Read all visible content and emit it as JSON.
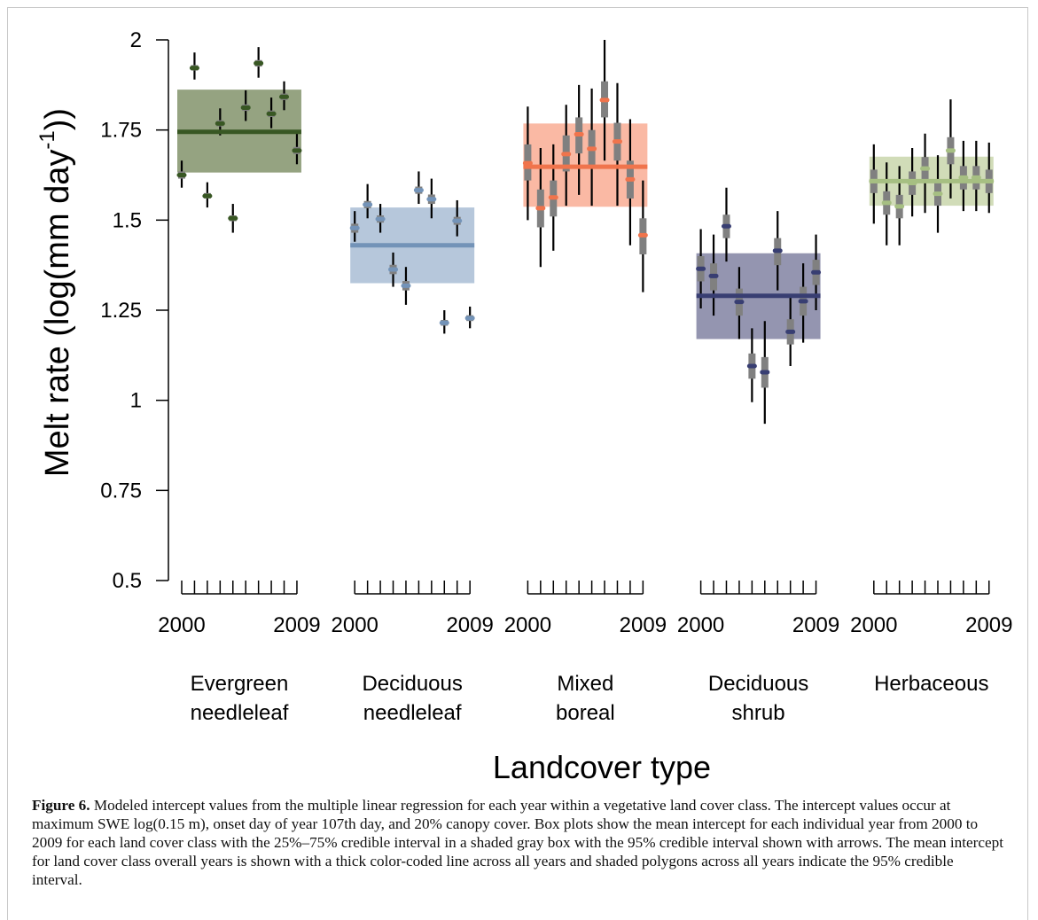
{
  "figure": {
    "label": "Figure 6.",
    "caption": "Modeled intercept values from the multiple linear regression for each year within a vegetative land cover class. The intercept values occur at maximum SWE log(0.15 m), onset day of year 107th day, and 20% canopy cover. Box plots show the mean intercept for each individual year from 2000 to 2009 for each land cover class with the 25%–75% credible interval in a shaded gray box with the 95% credible interval shown with arrows. The mean intercept for land cover class overall years is shown with a thick color-coded line across all years and shaded polygons across all years indicate the 95% credible interval."
  },
  "chart_data": {
    "type": "box",
    "xlabel": "Landcover type",
    "ylabel_main": "Melt rate (log(mm day",
    "ylabel_sup": "-1",
    "ylabel_end": "))",
    "ylim": [
      0.5,
      2.0
    ],
    "yticks": [
      0.5,
      0.75,
      1.0,
      1.25,
      1.5,
      1.75,
      2.0
    ],
    "ytick_labels": [
      "0.5",
      "0.75",
      "1",
      "1.25",
      "1.5",
      "1.75",
      "2"
    ],
    "years": [
      2000,
      2001,
      2002,
      2003,
      2004,
      2005,
      2006,
      2007,
      2008,
      2009
    ],
    "year_labels": [
      "2000",
      "2009"
    ],
    "groups": [
      {
        "name_line1": "Evergreen",
        "name_line2": "needleleaf",
        "color": "#385723",
        "band_color": "#546b34",
        "band_opacity": 0.62,
        "mean": 1.745,
        "band": [
          1.632,
          1.862
        ],
        "medians": [
          1.625,
          1.922,
          1.567,
          1.768,
          1.505,
          1.812,
          1.935,
          1.795,
          1.842,
          1.693
        ],
        "ci95_low": [
          1.59,
          1.89,
          1.535,
          1.735,
          1.465,
          1.775,
          1.895,
          1.755,
          1.805,
          1.655
        ],
        "ci95_high": [
          1.665,
          1.965,
          1.605,
          1.81,
          1.545,
          1.86,
          1.98,
          1.84,
          1.885,
          1.74
        ],
        "q25": [
          1.615,
          1.915,
          1.56,
          1.76,
          1.497,
          1.803,
          1.926,
          1.786,
          1.833,
          1.683
        ],
        "q75": [
          1.635,
          1.93,
          1.575,
          1.777,
          1.513,
          1.821,
          1.944,
          1.804,
          1.851,
          1.703
        ]
      },
      {
        "name_line1": "Deciduous",
        "name_line2": "needleleaf",
        "color": "#7393b8",
        "band_color": "#9ab1cd",
        "band_opacity": 0.72,
        "mean": 1.43,
        "band": [
          1.325,
          1.535
        ],
        "medians": [
          1.478,
          1.543,
          1.503,
          1.363,
          1.318,
          1.583,
          1.558,
          1.215,
          1.498,
          1.228
        ],
        "ci95_low": [
          1.44,
          1.505,
          1.465,
          1.315,
          1.265,
          1.545,
          1.505,
          1.185,
          1.455,
          1.2
        ],
        "ci95_high": [
          1.525,
          1.6,
          1.545,
          1.41,
          1.37,
          1.635,
          1.615,
          1.25,
          1.555,
          1.26
        ],
        "q25": [
          1.465,
          1.533,
          1.493,
          1.35,
          1.305,
          1.573,
          1.545,
          1.207,
          1.487,
          1.22
        ],
        "q75": [
          1.49,
          1.553,
          1.513,
          1.376,
          1.331,
          1.593,
          1.571,
          1.223,
          1.509,
          1.236
        ]
      },
      {
        "name_line1": "Mixed",
        "name_line2": "boreal",
        "color": "#f0744c",
        "band_color": "#f8a58b",
        "band_opacity": 0.78,
        "mean": 1.648,
        "band": [
          1.537,
          1.768
        ],
        "medians": [
          1.658,
          1.533,
          1.563,
          1.683,
          1.738,
          1.698,
          1.833,
          1.718,
          1.613,
          1.458
        ],
        "ci95_low": [
          1.5,
          1.37,
          1.415,
          1.54,
          1.57,
          1.54,
          1.665,
          1.54,
          1.43,
          1.3
        ],
        "ci95_high": [
          1.815,
          1.7,
          1.71,
          1.82,
          1.875,
          1.865,
          2.0,
          1.88,
          1.78,
          1.61
        ],
        "q25": [
          1.61,
          1.48,
          1.51,
          1.635,
          1.685,
          1.65,
          1.785,
          1.665,
          1.56,
          1.405
        ],
        "q75": [
          1.71,
          1.585,
          1.61,
          1.735,
          1.785,
          1.75,
          1.885,
          1.77,
          1.665,
          1.505
        ]
      },
      {
        "name_line1": "Deciduous",
        "name_line2": "shrub",
        "color": "#383e72",
        "band_color": "#6b6c91",
        "band_opacity": 0.72,
        "mean": 1.29,
        "band": [
          1.17,
          1.408
        ],
        "medians": [
          1.365,
          1.345,
          1.483,
          1.273,
          1.095,
          1.078,
          1.415,
          1.19,
          1.275,
          1.355
        ],
        "ci95_low": [
          1.255,
          1.235,
          1.385,
          1.17,
          0.995,
          0.935,
          1.305,
          1.095,
          1.16,
          1.25
        ],
        "ci95_high": [
          1.475,
          1.46,
          1.59,
          1.37,
          1.2,
          1.22,
          1.525,
          1.295,
          1.38,
          1.46
        ],
        "q25": [
          1.33,
          1.305,
          1.45,
          1.235,
          1.06,
          1.035,
          1.375,
          1.155,
          1.235,
          1.32
        ],
        "q75": [
          1.4,
          1.38,
          1.515,
          1.31,
          1.13,
          1.12,
          1.45,
          1.225,
          1.315,
          1.39
        ]
      },
      {
        "name_line1": "Herbaceous",
        "name_line2": "",
        "color": "#a6bf82",
        "band_color": "#c4d2a4",
        "band_opacity": 0.78,
        "mean": 1.608,
        "band": [
          1.54,
          1.676
        ],
        "medians": [
          1.608,
          1.548,
          1.538,
          1.603,
          1.643,
          1.573,
          1.693,
          1.618,
          1.618,
          1.608
        ],
        "ci95_low": [
          1.49,
          1.43,
          1.43,
          1.51,
          1.52,
          1.465,
          1.56,
          1.525,
          1.525,
          1.52
        ],
        "ci95_high": [
          1.71,
          1.66,
          1.65,
          1.7,
          1.74,
          1.68,
          1.835,
          1.72,
          1.72,
          1.715
        ],
        "q25": [
          1.575,
          1.515,
          1.505,
          1.57,
          1.61,
          1.54,
          1.655,
          1.585,
          1.585,
          1.575
        ],
        "q75": [
          1.64,
          1.58,
          1.57,
          1.635,
          1.675,
          1.605,
          1.73,
          1.65,
          1.65,
          1.64
        ]
      }
    ]
  }
}
